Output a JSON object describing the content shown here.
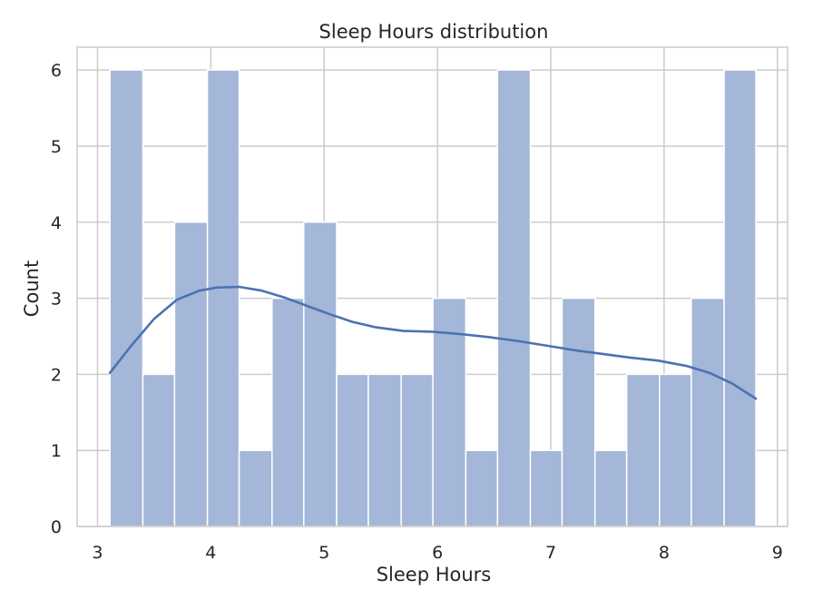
{
  "chart_data": {
    "type": "bar",
    "title": "Sleep Hours distribution",
    "xlabel": "Sleep Hours",
    "ylabel": "Count",
    "xlim": [
      2.82,
      9.09
    ],
    "ylim": [
      0,
      6.3
    ],
    "xticks": [
      3,
      4,
      5,
      6,
      7,
      8,
      9
    ],
    "yticks": [
      0,
      1,
      2,
      3,
      4,
      5,
      6
    ],
    "grid": true,
    "bar_color": "#a4b7d8",
    "kde_color": "#4c72b0",
    "bins": [
      {
        "x0": 3.11,
        "x1": 3.4,
        "count": 6
      },
      {
        "x0": 3.4,
        "x1": 3.68,
        "count": 2
      },
      {
        "x0": 3.68,
        "x1": 3.97,
        "count": 4
      },
      {
        "x0": 3.97,
        "x1": 4.25,
        "count": 6
      },
      {
        "x0": 4.25,
        "x1": 4.54,
        "count": 1
      },
      {
        "x0": 4.54,
        "x1": 4.82,
        "count": 3
      },
      {
        "x0": 4.82,
        "x1": 5.11,
        "count": 4
      },
      {
        "x0": 5.11,
        "x1": 5.39,
        "count": 2
      },
      {
        "x0": 5.39,
        "x1": 5.68,
        "count": 2
      },
      {
        "x0": 5.68,
        "x1": 5.96,
        "count": 2
      },
      {
        "x0": 5.96,
        "x1": 6.25,
        "count": 3
      },
      {
        "x0": 6.25,
        "x1": 6.53,
        "count": 1
      },
      {
        "x0": 6.53,
        "x1": 6.82,
        "count": 6
      },
      {
        "x0": 6.82,
        "x1": 7.1,
        "count": 1
      },
      {
        "x0": 7.1,
        "x1": 7.39,
        "count": 3
      },
      {
        "x0": 7.39,
        "x1": 7.67,
        "count": 1
      },
      {
        "x0": 7.67,
        "x1": 7.96,
        "count": 2
      },
      {
        "x0": 7.96,
        "x1": 8.24,
        "count": 2
      },
      {
        "x0": 8.24,
        "x1": 8.53,
        "count": 3
      },
      {
        "x0": 8.53,
        "x1": 8.81,
        "count": 6
      }
    ],
    "kde": {
      "x": [
        3.11,
        3.3,
        3.5,
        3.7,
        3.9,
        4.05,
        4.25,
        4.45,
        4.65,
        4.85,
        5.05,
        5.25,
        5.45,
        5.7,
        5.95,
        6.2,
        6.45,
        6.7,
        6.95,
        7.2,
        7.45,
        7.7,
        7.95,
        8.2,
        8.4,
        8.6,
        8.81
      ],
      "y": [
        2.02,
        2.38,
        2.73,
        2.98,
        3.1,
        3.14,
        3.15,
        3.1,
        3.01,
        2.9,
        2.79,
        2.69,
        2.62,
        2.57,
        2.56,
        2.53,
        2.49,
        2.44,
        2.38,
        2.32,
        2.27,
        2.22,
        2.18,
        2.11,
        2.02,
        1.88,
        1.68
      ]
    }
  }
}
